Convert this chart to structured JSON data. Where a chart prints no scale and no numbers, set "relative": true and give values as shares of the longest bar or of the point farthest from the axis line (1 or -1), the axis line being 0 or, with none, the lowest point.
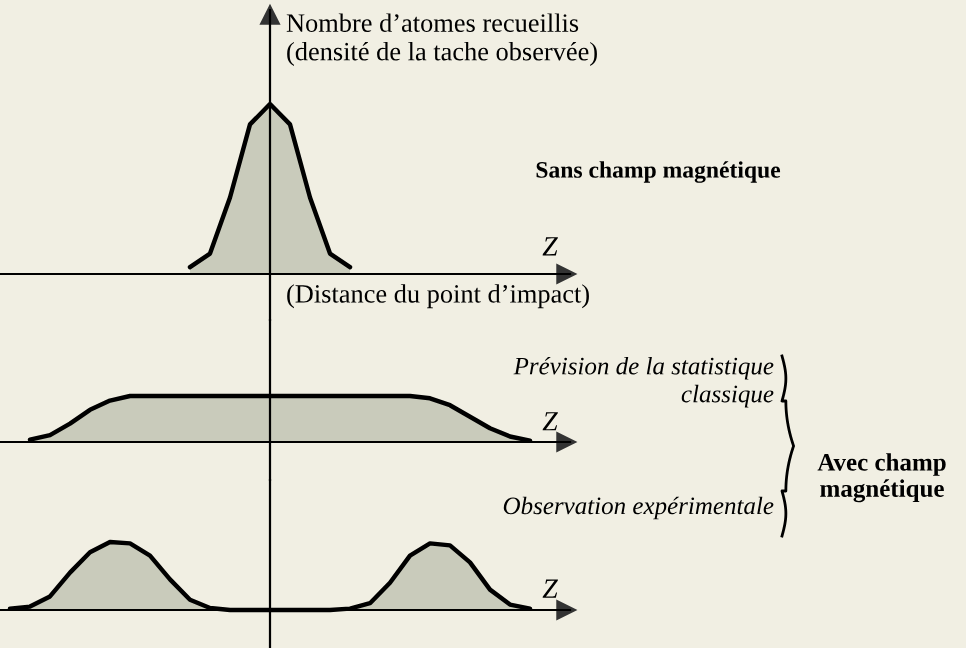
{
  "chart_data": [
    {
      "type": "area",
      "relative": true,
      "xlabel": "Z",
      "ylabel": "Nombre d’atomes recueillis\n(densité de la tache observée)",
      "annotations": [
        "(Distance du point d’impact)",
        "Sans champ magnétique"
      ],
      "categories": [
        null,
        null,
        null,
        null,
        null,
        null,
        null,
        null,
        null,
        null,
        null,
        null,
        null,
        null,
        null,
        null,
        null,
        null,
        null,
        null,
        null,
        null,
        null,
        null,
        null,
        null,
        null,
        null
      ],
      "series": [
        {
          "color": "#c9cbbb",
          "values": [
            null,
            null,
            null,
            null,
            null,
            null,
            null,
            null,
            null,
            0.04,
            0.12,
            0.45,
            0.88,
            1,
            0.88,
            0.45,
            0.12,
            0.04,
            null,
            null,
            null,
            null,
            null,
            null,
            null,
            null,
            null,
            null
          ]
        }
      ]
    },
    {
      "type": "area",
      "relative": true,
      "xlabel": "Z",
      "annotations": [
        "Prévision de la statistique\nclassique",
        "Avec champ\nmagnétique"
      ],
      "categories": [
        null,
        null,
        null,
        null,
        null,
        null,
        null,
        null,
        null,
        null,
        null,
        null,
        null,
        null,
        null,
        null,
        null,
        null,
        null,
        null,
        null,
        null,
        null,
        null,
        null,
        null,
        null,
        null
      ],
      "series": [
        {
          "color": "#c9cbbb",
          "values": [
            null,
            0.05,
            0.15,
            0.4,
            0.7,
            0.9,
            1,
            1,
            1,
            1,
            1,
            1,
            1,
            1,
            1,
            1,
            1,
            1,
            1,
            1,
            1,
            0.95,
            0.8,
            0.55,
            0.3,
            0.12,
            0.03,
            null
          ]
        }
      ]
    },
    {
      "type": "area",
      "relative": true,
      "xlabel": "Z",
      "annotations": [
        "Observation expérimentale"
      ],
      "categories": [
        null,
        null,
        null,
        null,
        null,
        null,
        null,
        null,
        null,
        null,
        null,
        null,
        null,
        null,
        null,
        null,
        null,
        null,
        null,
        null,
        null,
        null,
        null,
        null,
        null,
        null,
        null,
        null
      ],
      "series": [
        {
          "color": "#c9cbbb",
          "values": [
            0.02,
            0.05,
            0.2,
            0.55,
            0.85,
            1,
            0.98,
            0.8,
            0.45,
            0.15,
            0.03,
            0,
            0,
            0,
            0,
            0,
            0,
            0.02,
            0.1,
            0.4,
            0.8,
            0.98,
            0.95,
            0.7,
            0.3,
            0.08,
            0.02,
            null
          ]
        }
      ]
    }
  ]
}
